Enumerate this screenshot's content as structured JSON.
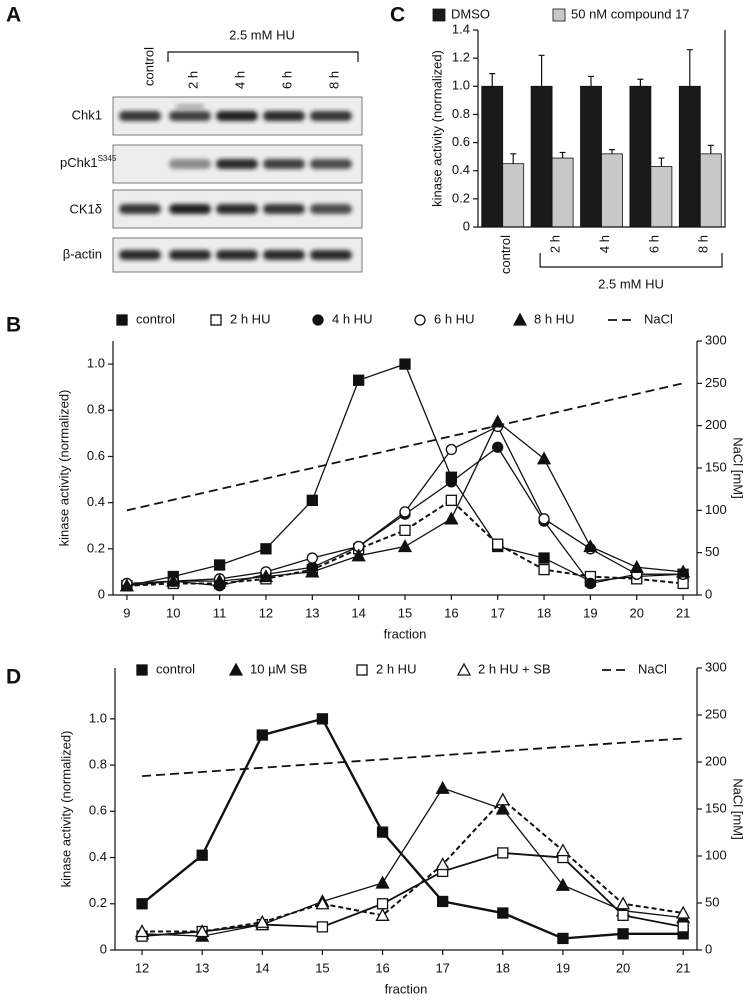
{
  "blot": {
    "panel_label": "A",
    "lanes": [
      "control",
      "2 h",
      "4 h",
      "6 h",
      "8 h"
    ],
    "treatment": "2.5 mM HU",
    "rows": [
      {
        "label": "Chk1"
      },
      {
        "label": "pChk1",
        "superscript": "S345"
      },
      {
        "label": "CK1δ"
      },
      {
        "label": "β-actin"
      }
    ]
  },
  "chart_data": [
    {
      "type": "bar",
      "panel_label": "C",
      "y_label": "kinase activity (normalized)",
      "categories": [
        "control",
        "2 h",
        "4 h",
        "6 h",
        "8 h"
      ],
      "group_label": "2.5 mM HU",
      "series": [
        {
          "name": "DMSO",
          "color": "#1a1a1a",
          "values": [
            1,
            1,
            1,
            1,
            1
          ],
          "errors": [
            0.09,
            0.22,
            0.07,
            0.05,
            0.26
          ]
        },
        {
          "name": "50 nM compound 17",
          "color": "#c8c8c8",
          "values": [
            0.45,
            0.49,
            0.52,
            0.43,
            0.52
          ],
          "errors": [
            0.07,
            0.04,
            0.03,
            0.06,
            0.06
          ]
        }
      ],
      "ylim": [
        0,
        1.4
      ],
      "yticks": [
        0,
        0.2,
        0.4,
        0.6,
        0.8,
        {
          "value": 1,
          "label": "1.0"
        },
        1.2,
        1.4
      ]
    },
    {
      "type": "line",
      "panel_label": "B",
      "x_label": "fraction",
      "y_label": "kinase activity (normalized)",
      "y2_label": "NaCl [mM]",
      "x": [
        9,
        10,
        11,
        12,
        13,
        14,
        15,
        16,
        17,
        18,
        19,
        20,
        21
      ],
      "series": [
        {
          "name": "control",
          "color": "#111111",
          "marker": "square",
          "filled": true,
          "line_style": "solid",
          "values": [
            0.04,
            0.08,
            0.13,
            0.2,
            0.41,
            0.93,
            1,
            0.51,
            0.21,
            0.16,
            0.06,
            0.08,
            0.09
          ]
        },
        {
          "name": "2 h HU",
          "color": "#111111",
          "marker": "square",
          "filled": false,
          "line_style": "dashed",
          "values": [
            0.04,
            0.05,
            0.05,
            0.07,
            0.11,
            0.2,
            0.28,
            0.41,
            0.22,
            0.11,
            0.08,
            0.07,
            0.05
          ]
        },
        {
          "name": "4 h HU",
          "color": "#111111",
          "marker": "circle",
          "filled": true,
          "line_style": "solid",
          "values": [
            0.04,
            0.06,
            0.04,
            0.09,
            0.12,
            0.21,
            0.35,
            0.49,
            0.64,
            0.32,
            0.05,
            0.09,
            0.09
          ]
        },
        {
          "name": "6 h HU",
          "color": "#111111",
          "marker": "circle",
          "filled": false,
          "line_style": "solid",
          "values": [
            0.05,
            0.06,
            0.07,
            0.1,
            0.16,
            0.21,
            0.36,
            0.63,
            0.73,
            0.33,
            0.2,
            0.09,
            0.09
          ]
        },
        {
          "name": "8 h HU",
          "color": "#111111",
          "marker": "triangle",
          "filled": true,
          "line_style": "solid",
          "values": [
            0.04,
            0.06,
            0.06,
            0.08,
            0.1,
            0.17,
            0.21,
            0.33,
            0.75,
            0.59,
            0.21,
            0.12,
            0.1
          ]
        },
        {
          "name": "NaCl",
          "color": "#111111",
          "line_style": "long-dashed",
          "axis": "y2",
          "x": [
            9,
            21
          ],
          "values": [
            100,
            250
          ]
        }
      ],
      "xlim": [
        8.7,
        21.3
      ],
      "xticks": [
        9,
        10,
        11,
        12,
        13,
        14,
        15,
        16,
        17,
        18,
        19,
        20,
        21
      ],
      "ylim": [
        0,
        1.1
      ],
      "yticks": [
        0,
        0.2,
        0.4,
        0.6,
        0.8,
        {
          "value": 1,
          "label": "1.0"
        }
      ],
      "y2lim": [
        0,
        300
      ],
      "y2ticks": [
        0,
        50,
        100,
        150,
        200,
        250,
        300
      ]
    },
    {
      "type": "line",
      "panel_label": "D",
      "x_label": "fraction",
      "y_label": "kinase activity (normalized)",
      "y2_label": "NaCl [mM]",
      "x": [
        12,
        13,
        14,
        15,
        16,
        17,
        18,
        19,
        20,
        21
      ],
      "series": [
        {
          "name": "control",
          "color": "#111111",
          "marker": "square",
          "filled": true,
          "line_style": "thick",
          "values": [
            0.2,
            0.41,
            0.93,
            1,
            0.51,
            0.21,
            0.16,
            0.05,
            0.07,
            0.07
          ]
        },
        {
          "name": "10 µM SB",
          "color": "#111111",
          "marker": "triangle",
          "filled": true,
          "line_style": "solid",
          "values": [
            0.07,
            0.06,
            0.11,
            0.21,
            0.29,
            0.7,
            0.61,
            0.28,
            0.17,
            0.14
          ]
        },
        {
          "name": "2 h HU",
          "color": "#111111",
          "marker": "square",
          "filled": false,
          "line_style": "medium",
          "values": [
            0.06,
            0.08,
            0.11,
            0.1,
            0.2,
            0.34,
            0.42,
            0.4,
            0.15,
            0.1
          ]
        },
        {
          "name": "2 h HU + SB",
          "color": "#111111",
          "marker": "triangle",
          "filled": false,
          "line_style": "dashed",
          "values": [
            0.08,
            0.08,
            0.12,
            0.2,
            0.15,
            0.37,
            0.65,
            0.43,
            0.2,
            0.16
          ]
        },
        {
          "name": "NaCl",
          "color": "#111111",
          "line_style": "long-dashed",
          "axis": "y2",
          "x": [
            12,
            21
          ],
          "values": [
            185,
            225
          ]
        }
      ],
      "xlim": [
        11.55,
        21.23
      ],
      "xticks": [
        12,
        13,
        14,
        15,
        16,
        17,
        18,
        19,
        20,
        21
      ],
      "ylim": [
        0,
        1.22
      ],
      "yticks": [
        0,
        0.2,
        0.4,
        0.6,
        0.8,
        {
          "value": 1,
          "label": "1.0"
        }
      ],
      "y2lim": [
        0,
        300
      ],
      "y2ticks": [
        0,
        50,
        100,
        150,
        200,
        250,
        300
      ]
    }
  ]
}
